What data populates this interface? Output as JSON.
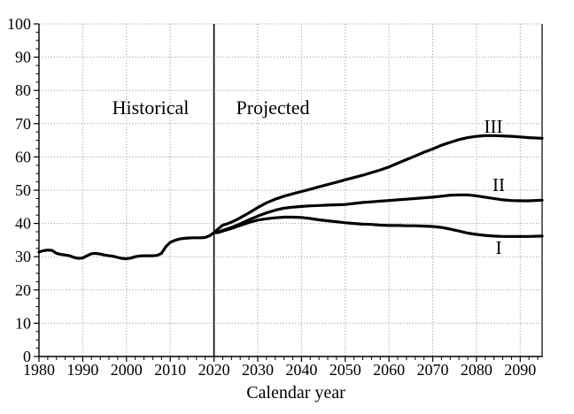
{
  "figure": {
    "region_labels": {
      "historical": "Historical",
      "projected": "Projected"
    }
  },
  "chart_data": {
    "type": "line",
    "title": "",
    "xlabel": "Calendar year",
    "ylabel": "",
    "xlim": [
      1980,
      2095
    ],
    "ylim": [
      0,
      100
    ],
    "x_ticks": [
      1980,
      1990,
      2000,
      2010,
      2020,
      2030,
      2040,
      2050,
      2060,
      2070,
      2080,
      2090
    ],
    "y_ticks": [
      0,
      10,
      20,
      30,
      40,
      50,
      60,
      70,
      80,
      90,
      100
    ],
    "x_minor_step": 2,
    "y_minor_step": 2.5,
    "grid": "dotted",
    "grid_color": "#8c8c8c",
    "line_color": "#000000",
    "divider_year": 2020,
    "legend_position": "none",
    "annotations": [
      {
        "text": "Historical",
        "x": 2005.5,
        "y": 75
      },
      {
        "text": "Projected",
        "x": 2033.5,
        "y": 75
      },
      {
        "text": "III",
        "x": 2084,
        "y": 69.5
      },
      {
        "text": "II",
        "x": 2085,
        "y": 52
      },
      {
        "text": "I",
        "x": 2085,
        "y": 33
      }
    ],
    "series": [
      {
        "name": "Historical",
        "points": [
          [
            1980,
            31.4
          ],
          [
            1981,
            31.8
          ],
          [
            1982,
            32.0
          ],
          [
            1983,
            31.9
          ],
          [
            1984,
            31.0
          ],
          [
            1985,
            30.7
          ],
          [
            1986,
            30.5
          ],
          [
            1987,
            30.3
          ],
          [
            1988,
            29.8
          ],
          [
            1989,
            29.5
          ],
          [
            1990,
            29.6
          ],
          [
            1991,
            30.3
          ],
          [
            1992,
            30.9
          ],
          [
            1993,
            31.0
          ],
          [
            1994,
            30.8
          ],
          [
            1995,
            30.5
          ],
          [
            1996,
            30.3
          ],
          [
            1997,
            30.1
          ],
          [
            1998,
            29.8
          ],
          [
            1999,
            29.5
          ],
          [
            2000,
            29.4
          ],
          [
            2001,
            29.6
          ],
          [
            2002,
            30.0
          ],
          [
            2003,
            30.2
          ],
          [
            2004,
            30.3
          ],
          [
            2005,
            30.3
          ],
          [
            2006,
            30.3
          ],
          [
            2007,
            30.4
          ],
          [
            2008,
            31.0
          ],
          [
            2009,
            33.0
          ],
          [
            2010,
            34.3
          ],
          [
            2011,
            34.9
          ],
          [
            2012,
            35.3
          ],
          [
            2013,
            35.5
          ],
          [
            2014,
            35.6
          ],
          [
            2015,
            35.7
          ],
          [
            2016,
            35.7
          ],
          [
            2017,
            35.7
          ],
          [
            2018,
            35.8
          ],
          [
            2019,
            36.3
          ],
          [
            2020,
            37.2
          ]
        ]
      },
      {
        "name": "I",
        "points": [
          [
            2020,
            37.2
          ],
          [
            2021,
            37.3
          ],
          [
            2022,
            37.7
          ],
          [
            2024,
            38.5
          ],
          [
            2026,
            39.4
          ],
          [
            2028,
            40.3
          ],
          [
            2030,
            41.0
          ],
          [
            2032,
            41.4
          ],
          [
            2034,
            41.7
          ],
          [
            2036,
            41.9
          ],
          [
            2038,
            41.9
          ],
          [
            2040,
            41.8
          ],
          [
            2042,
            41.5
          ],
          [
            2044,
            41.1
          ],
          [
            2046,
            40.8
          ],
          [
            2048,
            40.5
          ],
          [
            2050,
            40.2
          ],
          [
            2052,
            40.0
          ],
          [
            2054,
            39.8
          ],
          [
            2056,
            39.7
          ],
          [
            2058,
            39.5
          ],
          [
            2060,
            39.4
          ],
          [
            2062,
            39.4
          ],
          [
            2064,
            39.3
          ],
          [
            2066,
            39.3
          ],
          [
            2068,
            39.2
          ],
          [
            2070,
            39.1
          ],
          [
            2072,
            38.8
          ],
          [
            2074,
            38.3
          ],
          [
            2076,
            37.7
          ],
          [
            2078,
            37.1
          ],
          [
            2080,
            36.7
          ],
          [
            2082,
            36.4
          ],
          [
            2084,
            36.2
          ],
          [
            2086,
            36.1
          ],
          [
            2088,
            36.1
          ],
          [
            2090,
            36.1
          ],
          [
            2092,
            36.1
          ],
          [
            2095,
            36.2
          ]
        ]
      },
      {
        "name": "II",
        "points": [
          [
            2020,
            37.2
          ],
          [
            2021,
            37.4
          ],
          [
            2022,
            37.9
          ],
          [
            2024,
            38.8
          ],
          [
            2026,
            39.9
          ],
          [
            2028,
            41.1
          ],
          [
            2030,
            42.2
          ],
          [
            2032,
            43.2
          ],
          [
            2034,
            44.0
          ],
          [
            2036,
            44.6
          ],
          [
            2038,
            44.9
          ],
          [
            2040,
            45.1
          ],
          [
            2042,
            45.3
          ],
          [
            2044,
            45.4
          ],
          [
            2046,
            45.5
          ],
          [
            2048,
            45.6
          ],
          [
            2050,
            45.7
          ],
          [
            2052,
            46.0
          ],
          [
            2054,
            46.3
          ],
          [
            2056,
            46.5
          ],
          [
            2058,
            46.7
          ],
          [
            2060,
            46.9
          ],
          [
            2062,
            47.1
          ],
          [
            2064,
            47.3
          ],
          [
            2066,
            47.5
          ],
          [
            2068,
            47.7
          ],
          [
            2070,
            47.9
          ],
          [
            2072,
            48.2
          ],
          [
            2074,
            48.5
          ],
          [
            2076,
            48.6
          ],
          [
            2078,
            48.6
          ],
          [
            2080,
            48.3
          ],
          [
            2082,
            47.9
          ],
          [
            2084,
            47.5
          ],
          [
            2086,
            47.1
          ],
          [
            2088,
            46.9
          ],
          [
            2090,
            46.8
          ],
          [
            2092,
            46.8
          ],
          [
            2095,
            47.0
          ]
        ]
      },
      {
        "name": "III",
        "points": [
          [
            2020,
            37.2
          ],
          [
            2021,
            38.4
          ],
          [
            2022,
            39.5
          ],
          [
            2023,
            39.9
          ],
          [
            2024,
            40.4
          ],
          [
            2025,
            41.0
          ],
          [
            2026,
            41.7
          ],
          [
            2028,
            43.2
          ],
          [
            2030,
            44.8
          ],
          [
            2032,
            46.2
          ],
          [
            2034,
            47.3
          ],
          [
            2036,
            48.2
          ],
          [
            2038,
            48.9
          ],
          [
            2040,
            49.6
          ],
          [
            2042,
            50.3
          ],
          [
            2044,
            51.0
          ],
          [
            2046,
            51.7
          ],
          [
            2048,
            52.4
          ],
          [
            2050,
            53.1
          ],
          [
            2052,
            53.8
          ],
          [
            2054,
            54.5
          ],
          [
            2056,
            55.3
          ],
          [
            2058,
            56.1
          ],
          [
            2060,
            57.0
          ],
          [
            2062,
            58.1
          ],
          [
            2064,
            59.2
          ],
          [
            2066,
            60.3
          ],
          [
            2068,
            61.4
          ],
          [
            2070,
            62.4
          ],
          [
            2072,
            63.5
          ],
          [
            2074,
            64.4
          ],
          [
            2076,
            65.2
          ],
          [
            2078,
            65.8
          ],
          [
            2080,
            66.2
          ],
          [
            2082,
            66.4
          ],
          [
            2084,
            66.4
          ],
          [
            2086,
            66.3
          ],
          [
            2088,
            66.2
          ],
          [
            2090,
            66.0
          ],
          [
            2092,
            65.8
          ],
          [
            2095,
            65.6
          ]
        ]
      }
    ]
  }
}
